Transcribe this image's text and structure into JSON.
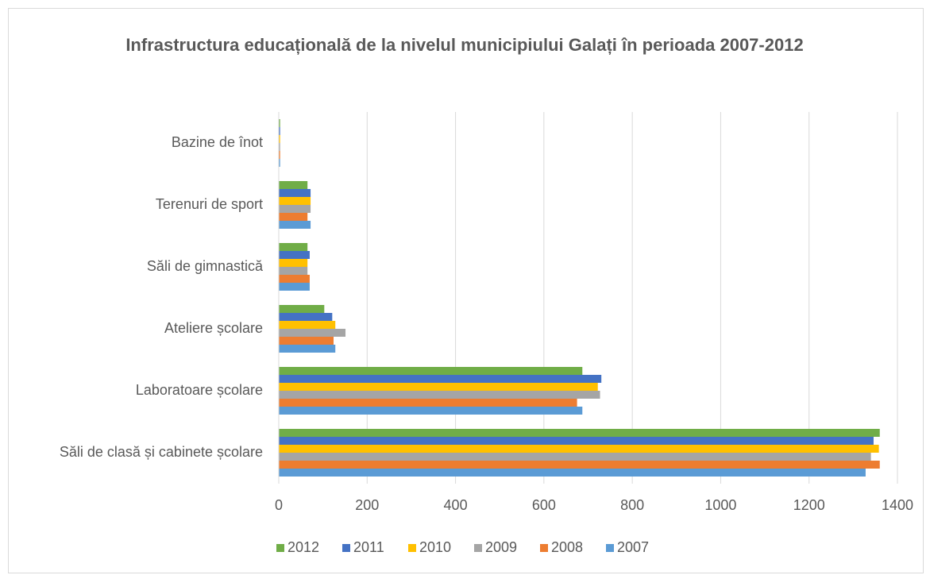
{
  "chart_data": {
    "type": "bar",
    "orientation": "horizontal",
    "title": "Infrastructura  educațională de la nivelul municipiului Galați în perioada 2007-2012",
    "categories": [
      "Săli de clasă și cabinete școlare",
      "Laboratoare școlare",
      "Ateliere școlare",
      "Săli de gimnastică",
      "Terenuri de sport",
      "Bazine de înot"
    ],
    "series": [
      {
        "name": "2012",
        "color": "#70ad47",
        "values": [
          1360,
          687,
          103,
          65,
          65,
          3
        ]
      },
      {
        "name": "2011",
        "color": "#4472c4",
        "values": [
          1346,
          730,
          121,
          70,
          72,
          3
        ]
      },
      {
        "name": "2010",
        "color": "#ffc000",
        "values": [
          1358,
          722,
          128,
          65,
          72,
          3
        ]
      },
      {
        "name": "2009",
        "color": "#a5a5a5",
        "values": [
          1340,
          727,
          151,
          65,
          72,
          3
        ]
      },
      {
        "name": "2008",
        "color": "#ed7d31",
        "values": [
          1360,
          675,
          124,
          70,
          65,
          3
        ]
      },
      {
        "name": "2007",
        "color": "#5b9bd5",
        "values": [
          1328,
          687,
          128,
          70,
          72,
          3
        ]
      }
    ],
    "xlim": [
      0,
      1400
    ],
    "xticks": [
      0,
      200,
      400,
      600,
      800,
      1000,
      1200,
      1400
    ],
    "grid": true,
    "legend": "bottom"
  }
}
